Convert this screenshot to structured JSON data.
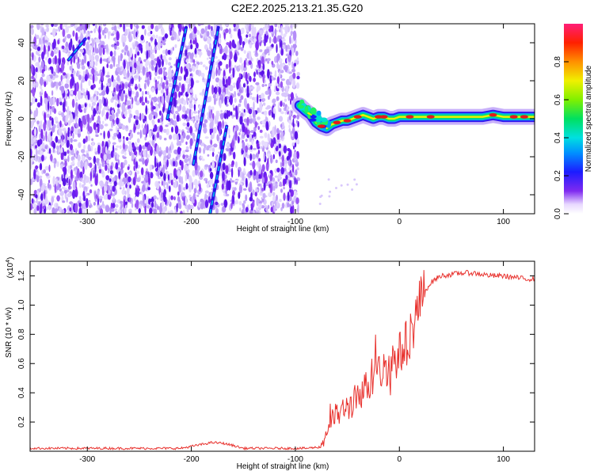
{
  "figure_title": "C2E2.2025.213.21.35.G20",
  "colors": {
    "snr_line": "#e8322e",
    "spectrogram_noise": "#7f2af0",
    "spectrogram_strong": "#e31a1c"
  },
  "chart_data": [
    {
      "type": "heatmap",
      "xlabel": "Height of straight line (km)",
      "ylabel": "Frequency (Hz)",
      "xlim": [
        -355,
        130
      ],
      "ylim": [
        -50,
        50
      ],
      "xticks": [
        -300,
        -200,
        -100,
        0,
        100
      ],
      "yticks": [
        -40,
        -20,
        0,
        20,
        40
      ],
      "colorbar": {
        "label": "Normalized spectral amplitude",
        "range": [
          0.0,
          1.0
        ],
        "ticks": [
          "0.0",
          "0.2",
          "0.4",
          "0.6",
          "0.8"
        ],
        "tick_values": [
          0.0,
          0.2,
          0.4,
          0.6,
          0.8
        ]
      },
      "noise_region_x": [
        -355,
        -97
      ],
      "ridge": {
        "x": [
          -96,
          -90,
          -85,
          -80,
          -75,
          -70,
          -65,
          -60,
          -55,
          -50,
          -45,
          -40,
          -35,
          -30,
          -25,
          -20,
          -15,
          -10,
          -5,
          0,
          20,
          40,
          60,
          80,
          90,
          100,
          110,
          120,
          130
        ],
        "freq": [
          7,
          4,
          2,
          -2,
          -4,
          -5,
          -3,
          -2,
          -1,
          -1,
          0,
          1,
          2,
          1,
          0,
          1,
          1,
          0,
          0,
          1,
          1,
          1,
          1,
          1,
          2,
          1,
          1,
          1,
          1
        ]
      },
      "strong_spots_x": [
        -75,
        -60,
        -50,
        -40,
        -20,
        -15,
        10,
        30,
        90,
        110,
        120
      ],
      "streaks": [
        {
          "x0": -223,
          "y0": 0,
          "x1": -205,
          "y1": 48
        },
        {
          "x0": -198,
          "y0": -24,
          "x1": -174,
          "y1": 48
        },
        {
          "x0": -182,
          "y0": -50,
          "x1": -166,
          "y1": -4
        },
        {
          "x0": -318,
          "y0": 31,
          "x1": -302,
          "y1": 42
        }
      ]
    },
    {
      "type": "line",
      "xlabel": "Height of straight line (km)",
      "ylabel": "SNR (10 * v/v)",
      "yscale_label": "(x10",
      "yscale_exponent": "4",
      "yscale_suffix": ")",
      "xlim": [
        -355,
        130
      ],
      "ylim": [
        0.0,
        1.3
      ],
      "xticks": [
        -300,
        -200,
        -100,
        0,
        100
      ],
      "yticks": [
        0.2,
        0.4,
        0.6,
        0.8,
        1.0,
        1.2
      ],
      "series": [
        {
          "x": [
            -355,
            -300,
            -250,
            -210,
            -195,
            -180,
            -170,
            -160,
            -150,
            -130,
            -110,
            -100,
            -90,
            -75,
            -70,
            -65,
            -60,
            -55,
            -50,
            -45,
            -40,
            -35,
            -30,
            -25,
            -20,
            -15,
            -10,
            -5,
            0,
            5,
            10,
            15,
            20,
            25,
            30,
            35,
            40,
            50,
            60,
            70,
            80,
            90,
            100,
            110,
            120,
            130
          ],
          "y": [
            0.02,
            0.02,
            0.02,
            0.02,
            0.04,
            0.06,
            0.055,
            0.04,
            0.02,
            0.02,
            0.02,
            0.02,
            0.02,
            0.03,
            0.15,
            0.22,
            0.25,
            0.27,
            0.3,
            0.33,
            0.38,
            0.42,
            0.45,
            0.5,
            0.53,
            0.56,
            0.6,
            0.63,
            0.66,
            0.72,
            0.8,
            0.9,
            1.02,
            1.1,
            1.15,
            1.18,
            1.2,
            1.21,
            1.22,
            1.22,
            1.21,
            1.2,
            1.2,
            1.19,
            1.18,
            1.18
          ]
        }
      ]
    }
  ]
}
